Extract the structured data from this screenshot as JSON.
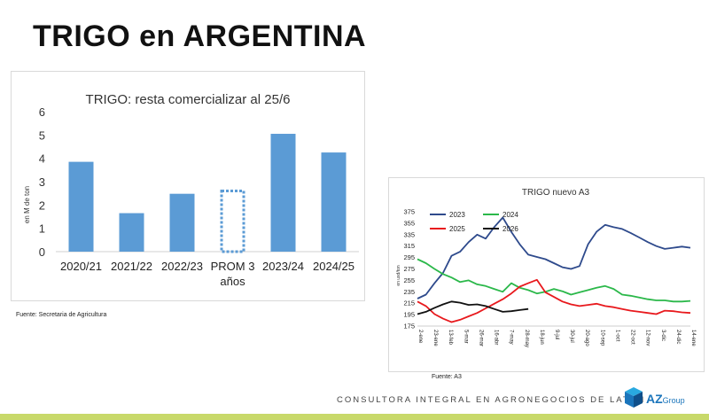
{
  "page": {
    "title": "TRIGO en ARGENTINA",
    "footer": "CONSULTORA INTEGRAL EN AGRONEGOCIOS DE LATAM",
    "logo": {
      "main": "AZ",
      "sub": "Group"
    },
    "accent_color": "#c8d96a"
  },
  "chart_data": [
    {
      "type": "bar",
      "title": "TRIGO: resta comercializar al 25/6",
      "ylabel": "en M de ton",
      "xlabel": "",
      "ylim": [
        0,
        6
      ],
      "yticks": [
        0,
        1,
        2,
        3,
        4,
        5,
        6
      ],
      "grid": false,
      "categories": [
        "2020/21",
        "2021/22",
        "2022/23",
        "PROM 3 años",
        "2023/24",
        "2024/25"
      ],
      "category_lines": [
        [
          "2020/21"
        ],
        [
          "2021/22"
        ],
        [
          "2022/23"
        ],
        [
          "PROM 3",
          "años"
        ],
        [
          "2023/24"
        ],
        [
          "2024/25"
        ]
      ],
      "values": [
        3.85,
        1.65,
        2.48,
        2.66,
        5.05,
        4.25
      ],
      "dashed": [
        false,
        false,
        false,
        true,
        false,
        false
      ],
      "bar_color": "#5b9bd5",
      "source": "Fuente: Secretaria de Agricultura"
    },
    {
      "type": "line",
      "title": "TRIGO nuevo A3",
      "ylabel": "en usd/ton",
      "ylim": [
        175,
        375
      ],
      "yticks": [
        175,
        195,
        215,
        235,
        255,
        275,
        295,
        315,
        335,
        355,
        375
      ],
      "x_labels": [
        "2-ene",
        "23-ene",
        "13-feb",
        "5-mar",
        "26-mar",
        "16-abr",
        "7-may",
        "28-may",
        "18-jun",
        "9-jul",
        "30-jul",
        "20-ago",
        "10-sep",
        "1-oct",
        "22-oct",
        "12-nov",
        "3-dic",
        "24-dic",
        "14-ene"
      ],
      "legend": "top-left",
      "source": "Fuente: A3",
      "series": [
        {
          "name": "2023",
          "color": "#2e4a8c",
          "values": [
            223,
            230,
            250,
            268,
            298,
            305,
            322,
            335,
            328,
            348,
            365,
            340,
            318,
            300,
            296,
            292,
            285,
            278,
            275,
            280,
            318,
            340,
            352,
            348,
            345,
            338,
            330,
            322,
            315,
            310,
            312,
            314,
            312
          ]
        },
        {
          "name": "2024",
          "color": "#2bb84a",
          "values": [
            292,
            285,
            275,
            266,
            260,
            252,
            255,
            248,
            245,
            240,
            235,
            250,
            242,
            238,
            232,
            235,
            240,
            236,
            230,
            234,
            238,
            242,
            245,
            240,
            230,
            228,
            225,
            222,
            220,
            220,
            218,
            218,
            219
          ]
        },
        {
          "name": "2025",
          "color": "#e8191d",
          "values": [
            218,
            210,
            196,
            188,
            182,
            186,
            192,
            198,
            206,
            214,
            222,
            232,
            244,
            250,
            256,
            234,
            226,
            218,
            213,
            210,
            212,
            214,
            210,
            208,
            205,
            202,
            200,
            198,
            196,
            202,
            201,
            199,
            198
          ]
        },
        {
          "name": "2026",
          "color": "#111111",
          "values": [
            196,
            200,
            207,
            213,
            218,
            216,
            212,
            213,
            210,
            205,
            200,
            201,
            203,
            205
          ]
        }
      ]
    }
  ]
}
